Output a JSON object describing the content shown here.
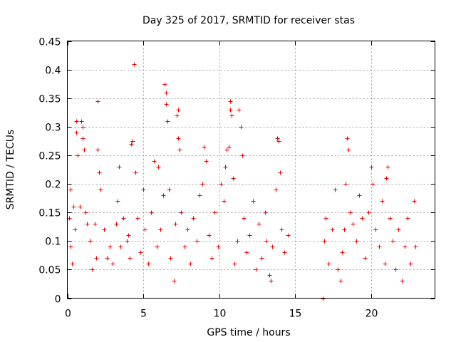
{
  "chart_data": {
    "type": "scatter",
    "title": "Day 325 of 2017, SRMTID for receiver stas",
    "xlabel": "GPS time / hours",
    "ylabel": "SRMTID / TECUs",
    "xlim": [
      0,
      24.2
    ],
    "ylim": [
      0,
      0.45
    ],
    "x_ticks": [
      0,
      5,
      10,
      15,
      20
    ],
    "x_tick_labels": [
      "0",
      "5",
      "10",
      "15",
      "20"
    ],
    "y_ticks": [
      0,
      0.05,
      0.1,
      0.15,
      0.2,
      0.25,
      0.3,
      0.35,
      0.4,
      0.45
    ],
    "y_tick_labels": [
      "0",
      "0.05",
      "0.1",
      "0.15",
      "0.2",
      "0.25",
      "0.3",
      "0.35",
      "0.4",
      "0.45"
    ],
    "grid": true,
    "marker": "+",
    "marker_color": "#ee0000",
    "data_gap_hours": [
      14.7,
      16.6
    ],
    "points": [
      [
        0.1,
        0.14
      ],
      [
        0.2,
        0.19
      ],
      [
        0.2,
        0.09
      ],
      [
        0.3,
        0.06
      ],
      [
        0.4,
        0.16
      ],
      [
        0.5,
        0.12
      ],
      [
        0.6,
        0.31
      ],
      [
        0.6,
        0.29
      ],
      [
        0.7,
        0.25
      ],
      [
        0.8,
        0.16
      ],
      [
        0.9,
        0.31
      ],
      [
        1.0,
        0.3
      ],
      [
        1.0,
        0.28
      ],
      [
        1.1,
        0.26
      ],
      [
        1.2,
        0.15
      ],
      [
        1.3,
        0.13
      ],
      [
        1.5,
        0.1
      ],
      [
        1.6,
        0.05
      ],
      [
        1.8,
        0.13
      ],
      [
        1.9,
        0.07
      ],
      [
        2.0,
        0.345
      ],
      [
        2.0,
        0.26
      ],
      [
        2.1,
        0.22
      ],
      [
        2.2,
        0.19
      ],
      [
        2.4,
        0.12
      ],
      [
        2.6,
        0.07
      ],
      [
        2.8,
        0.09
      ],
      [
        3.0,
        0.06
      ],
      [
        3.2,
        0.13
      ],
      [
        3.3,
        0.17
      ],
      [
        3.4,
        0.23
      ],
      [
        3.5,
        0.09
      ],
      [
        3.7,
        0.14
      ],
      [
        3.9,
        0.1
      ],
      [
        4.0,
        0.11
      ],
      [
        4.1,
        0.07
      ],
      [
        4.2,
        0.27
      ],
      [
        4.3,
        0.275
      ],
      [
        4.4,
        0.41
      ],
      [
        4.5,
        0.22
      ],
      [
        4.6,
        0.14
      ],
      [
        4.8,
        0.08
      ],
      [
        5.0,
        0.19
      ],
      [
        5.1,
        0.12
      ],
      [
        5.3,
        0.06
      ],
      [
        5.5,
        0.15
      ],
      [
        5.7,
        0.24
      ],
      [
        5.9,
        0.09
      ],
      [
        6.0,
        0.23
      ],
      [
        6.1,
        0.12
      ],
      [
        6.3,
        0.18
      ],
      [
        6.4,
        0.375
      ],
      [
        6.5,
        0.36
      ],
      [
        6.5,
        0.34
      ],
      [
        6.6,
        0.31
      ],
      [
        6.7,
        0.19
      ],
      [
        6.8,
        0.07
      ],
      [
        7.0,
        0.03
      ],
      [
        7.1,
        0.13
      ],
      [
        7.2,
        0.32
      ],
      [
        7.3,
        0.33
      ],
      [
        7.3,
        0.28
      ],
      [
        7.4,
        0.26
      ],
      [
        7.5,
        0.15
      ],
      [
        7.7,
        0.09
      ],
      [
        7.9,
        0.12
      ],
      [
        8.1,
        0.06
      ],
      [
        8.3,
        0.14
      ],
      [
        8.5,
        0.1
      ],
      [
        8.7,
        0.18
      ],
      [
        8.9,
        0.2
      ],
      [
        9.0,
        0.265
      ],
      [
        9.1,
        0.24
      ],
      [
        9.3,
        0.11
      ],
      [
        9.5,
        0.07
      ],
      [
        9.7,
        0.15
      ],
      [
        9.9,
        0.09
      ],
      [
        10.1,
        0.2
      ],
      [
        10.3,
        0.17
      ],
      [
        10.4,
        0.23
      ],
      [
        10.5,
        0.26
      ],
      [
        10.6,
        0.265
      ],
      [
        10.7,
        0.345
      ],
      [
        10.7,
        0.33
      ],
      [
        10.8,
        0.32
      ],
      [
        10.9,
        0.21
      ],
      [
        11.0,
        0.06
      ],
      [
        11.2,
        0.1
      ],
      [
        11.3,
        0.33
      ],
      [
        11.4,
        0.3
      ],
      [
        11.5,
        0.25
      ],
      [
        11.6,
        0.14
      ],
      [
        11.8,
        0.08
      ],
      [
        12.0,
        0.11
      ],
      [
        12.2,
        0.17
      ],
      [
        12.4,
        0.05
      ],
      [
        12.6,
        0.13
      ],
      [
        12.8,
        0.07
      ],
      [
        13.0,
        0.15
      ],
      [
        13.1,
        0.1
      ],
      [
        13.3,
        0.04
      ],
      [
        13.4,
        0.03
      ],
      [
        13.5,
        0.09
      ],
      [
        13.7,
        0.19
      ],
      [
        13.8,
        0.28
      ],
      [
        13.9,
        0.275
      ],
      [
        14.0,
        0.22
      ],
      [
        14.1,
        0.12
      ],
      [
        14.3,
        0.08
      ],
      [
        14.5,
        0.11
      ],
      [
        16.8,
        0.0
      ],
      [
        16.9,
        0.1
      ],
      [
        17.0,
        0.14
      ],
      [
        17.2,
        0.06
      ],
      [
        17.4,
        0.12
      ],
      [
        17.6,
        0.19
      ],
      [
        17.8,
        0.05
      ],
      [
        18.0,
        0.03
      ],
      [
        18.1,
        0.08
      ],
      [
        18.2,
        0.12
      ],
      [
        18.3,
        0.2
      ],
      [
        18.4,
        0.28
      ],
      [
        18.5,
        0.26
      ],
      [
        18.6,
        0.15
      ],
      [
        18.8,
        0.13
      ],
      [
        19.0,
        0.1
      ],
      [
        19.2,
        0.18
      ],
      [
        19.4,
        0.14
      ],
      [
        19.6,
        0.07
      ],
      [
        19.8,
        0.15
      ],
      [
        20.0,
        0.23
      ],
      [
        20.1,
        0.2
      ],
      [
        20.3,
        0.12
      ],
      [
        20.5,
        0.09
      ],
      [
        20.7,
        0.17
      ],
      [
        20.9,
        0.06
      ],
      [
        21.0,
        0.21
      ],
      [
        21.1,
        0.23
      ],
      [
        21.2,
        0.14
      ],
      [
        21.4,
        0.1
      ],
      [
        21.6,
        0.05
      ],
      [
        21.8,
        0.12
      ],
      [
        22.0,
        0.03
      ],
      [
        22.2,
        0.09
      ],
      [
        22.4,
        0.14
      ],
      [
        22.6,
        0.06
      ],
      [
        22.8,
        0.17
      ],
      [
        22.9,
        0.09
      ]
    ]
  }
}
